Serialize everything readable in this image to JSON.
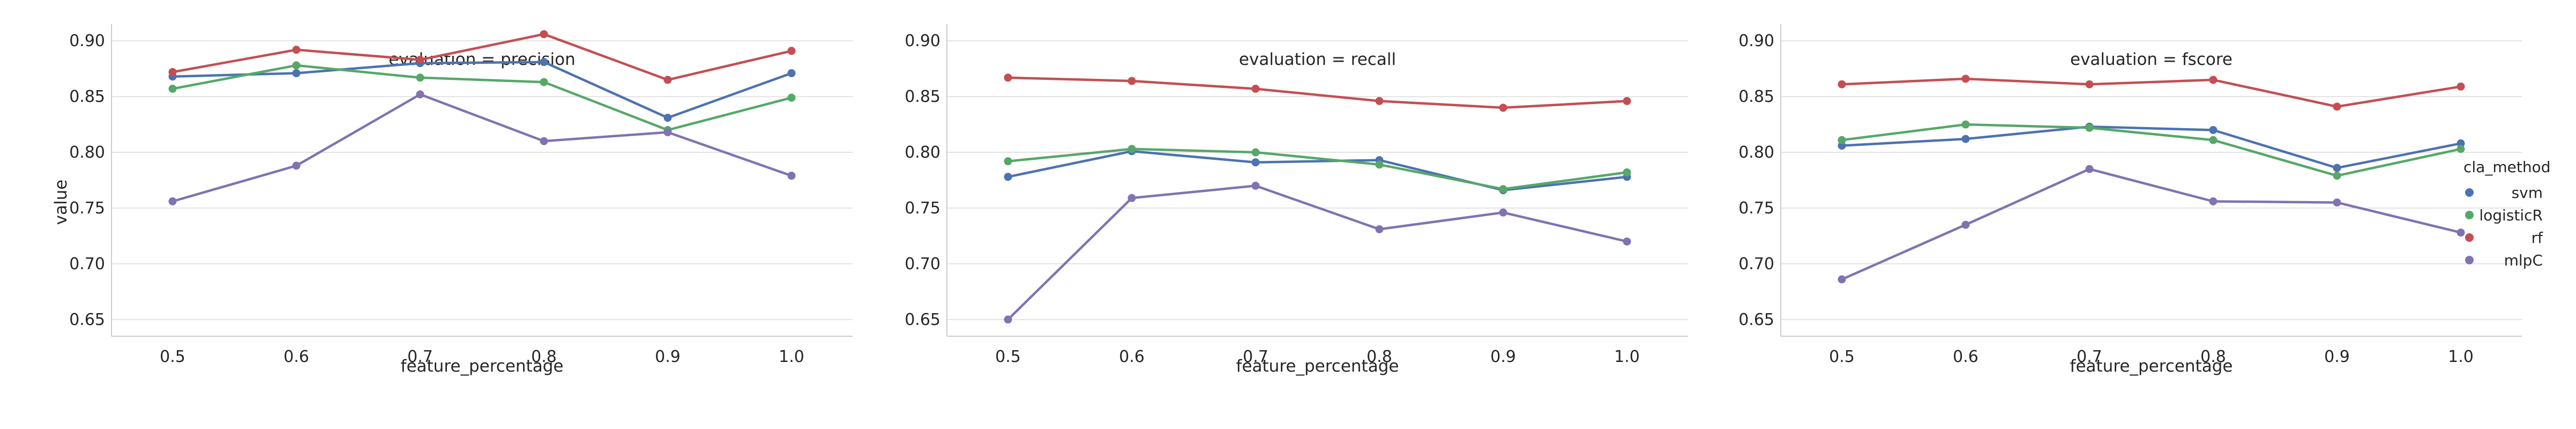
{
  "chart_data": {
    "type": "line",
    "grid": true,
    "legend_position": "right",
    "legend": {
      "title": "cla_method",
      "entries": [
        {
          "name": "svm",
          "color": "#4c72b0"
        },
        {
          "name": "logisticR",
          "color": "#55a868"
        },
        {
          "name": "rf",
          "color": "#c44e52"
        },
        {
          "name": "mlpC",
          "color": "#8172b2"
        }
      ]
    },
    "x": [
      0.5,
      0.6,
      0.7,
      0.8,
      0.9,
      1.0
    ],
    "x_tick_labels": [
      "0.5",
      "0.6",
      "0.7",
      "0.8",
      "0.9",
      "1.0"
    ],
    "ylim": [
      0.635,
      0.915
    ],
    "y_ticks": [
      0.65,
      0.7,
      0.75,
      0.8,
      0.85,
      0.9
    ],
    "y_tick_labels": [
      "0.65",
      "0.70",
      "0.75",
      "0.80",
      "0.85",
      "0.90"
    ],
    "ylabel": "value",
    "panels": [
      {
        "title": "evaluation = precision",
        "xlabel": "feature_percentage",
        "series": [
          {
            "name": "svm",
            "color": "#4c72b0",
            "values": [
              0.868,
              0.871,
              0.88,
              0.881,
              0.831,
              0.871
            ]
          },
          {
            "name": "logisticR",
            "color": "#55a868",
            "values": [
              0.857,
              0.878,
              0.867,
              0.863,
              0.82,
              0.849
            ]
          },
          {
            "name": "rf",
            "color": "#c44e52",
            "values": [
              0.872,
              0.892,
              0.883,
              0.906,
              0.865,
              0.891
            ]
          },
          {
            "name": "mlpC",
            "color": "#8172b2",
            "values": [
              0.756,
              0.788,
              0.852,
              0.81,
              0.818,
              0.779
            ]
          }
        ]
      },
      {
        "title": "evaluation = recall",
        "xlabel": "feature_percentage",
        "series": [
          {
            "name": "svm",
            "color": "#4c72b0",
            "values": [
              0.778,
              0.801,
              0.791,
              0.793,
              0.766,
              0.778
            ]
          },
          {
            "name": "logisticR",
            "color": "#55a868",
            "values": [
              0.792,
              0.803,
              0.8,
              0.789,
              0.767,
              0.782
            ]
          },
          {
            "name": "rf",
            "color": "#c44e52",
            "values": [
              0.867,
              0.864,
              0.857,
              0.846,
              0.84,
              0.846
            ]
          },
          {
            "name": "mlpC",
            "color": "#8172b2",
            "values": [
              0.65,
              0.759,
              0.77,
              0.731,
              0.746,
              0.72
            ]
          }
        ]
      },
      {
        "title": "evaluation = fscore",
        "xlabel": "feature_percentage",
        "series": [
          {
            "name": "svm",
            "color": "#4c72b0",
            "values": [
              0.806,
              0.812,
              0.823,
              0.82,
              0.786,
              0.808
            ]
          },
          {
            "name": "logisticR",
            "color": "#55a868",
            "values": [
              0.811,
              0.825,
              0.822,
              0.811,
              0.779,
              0.803
            ]
          },
          {
            "name": "rf",
            "color": "#c44e52",
            "values": [
              0.861,
              0.866,
              0.861,
              0.865,
              0.841,
              0.859
            ]
          },
          {
            "name": "mlpC",
            "color": "#8172b2",
            "values": [
              0.686,
              0.735,
              0.785,
              0.756,
              0.755,
              0.728
            ]
          }
        ]
      }
    ]
  }
}
